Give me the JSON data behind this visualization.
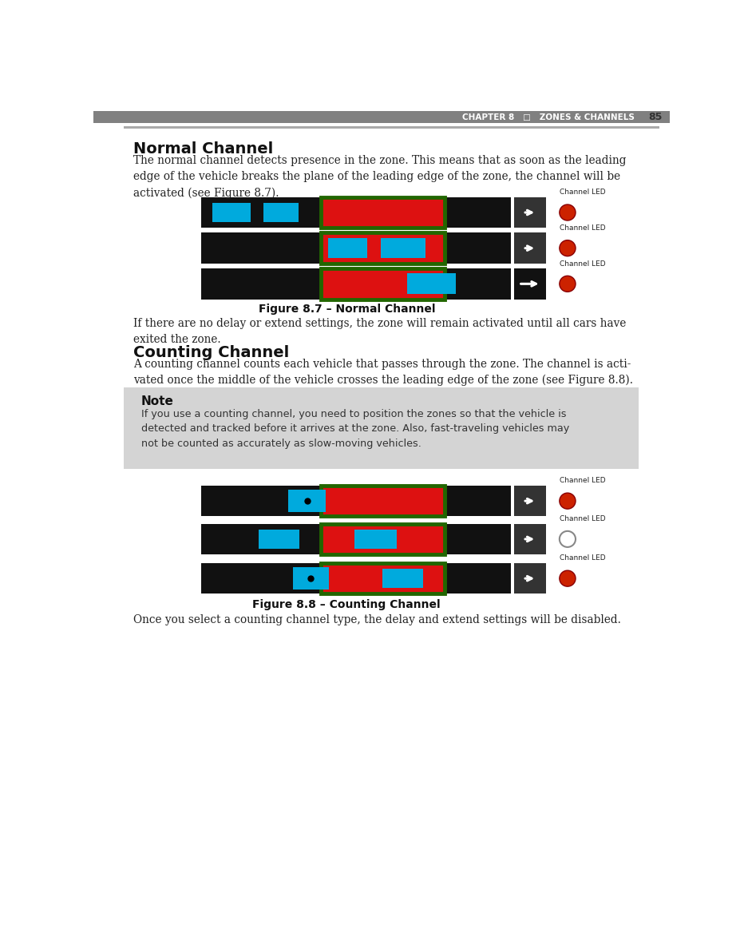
{
  "page_bg": "#ffffff",
  "header_bar_color": "#808080",
  "header_text": "CHAPTER 8   □   ZONES & CHANNELS",
  "header_page_num": "85",
  "section1_title": "Normal Channel",
  "section1_body": "The normal channel detects presence in the zone. This means that as soon as the leading\nedge of the vehicle breaks the plane of the leading edge of the zone, the channel will be\nactivated (see Figure 8.7).",
  "fig1_caption": "Figure 8.7 – Normal Channel",
  "fig1_text_after": "If there are no delay or extend settings, the zone will remain activated until all cars have\nexited the zone.",
  "section2_title": "Counting Channel",
  "section2_body": "A counting channel counts each vehicle that passes through the zone. The channel is acti-\nvated once the middle of the vehicle crosses the leading edge of the zone (see Figure 8.8).",
  "note_title": "Note",
  "note_body": "If you use a counting channel, you need to position the zones so that the vehicle is\ndetected and tracked before it arrives at the zone. Also, fast-traveling vehicles may\nnot be counted as accurately as slow-moving vehicles.",
  "fig2_caption": "Figure 8.8 – Counting Channel",
  "fig2_text_after": "Once you select a counting channel type, the delay and extend settings will be disabled.",
  "col_black": "#111111",
  "col_red": "#dd1111",
  "col_cyan": "#00aadd",
  "col_green_border": "#226600",
  "col_white": "#ffffff",
  "col_led_red": "#cc2200",
  "col_note_bg": "#d4d4d4",
  "col_arrow_bg": "#333333",
  "col_header_text": "#ffffff",
  "col_gray_rule": "#aaaaaa"
}
